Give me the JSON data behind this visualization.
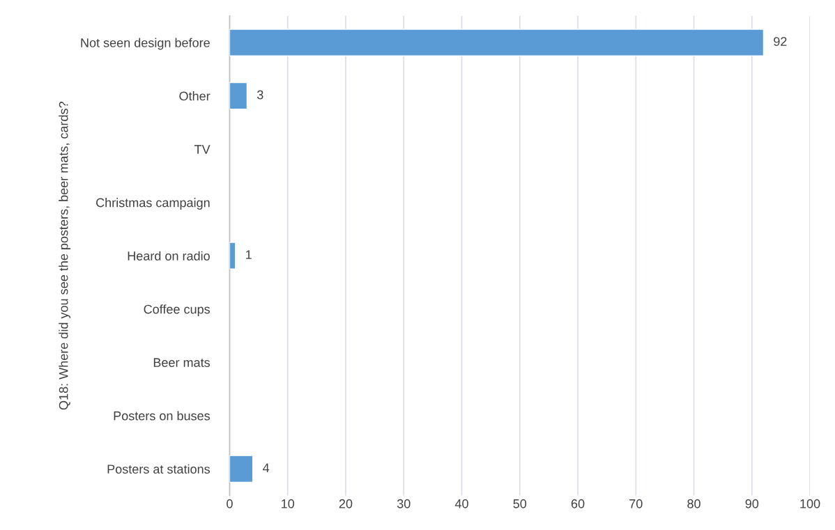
{
  "chart_data": {
    "type": "bar",
    "orientation": "horizontal",
    "ylabel": "Q18: Where did you see the posters, beer mats, cards?",
    "categories": [
      "Not seen design before",
      "Other",
      "TV",
      "Christmas campaign",
      "Heard on radio",
      "Coffee cups",
      "Beer mats",
      "Posters on buses",
      "Posters at stations"
    ],
    "values": [
      92,
      3,
      null,
      null,
      1,
      null,
      null,
      null,
      4
    ],
    "color": "#5b9bd5",
    "xlim": [
      0,
      100
    ],
    "xticks": [
      0,
      10,
      20,
      30,
      40,
      50,
      60,
      70,
      80,
      90,
      100
    ],
    "grid": "x",
    "data_labels": true
  }
}
